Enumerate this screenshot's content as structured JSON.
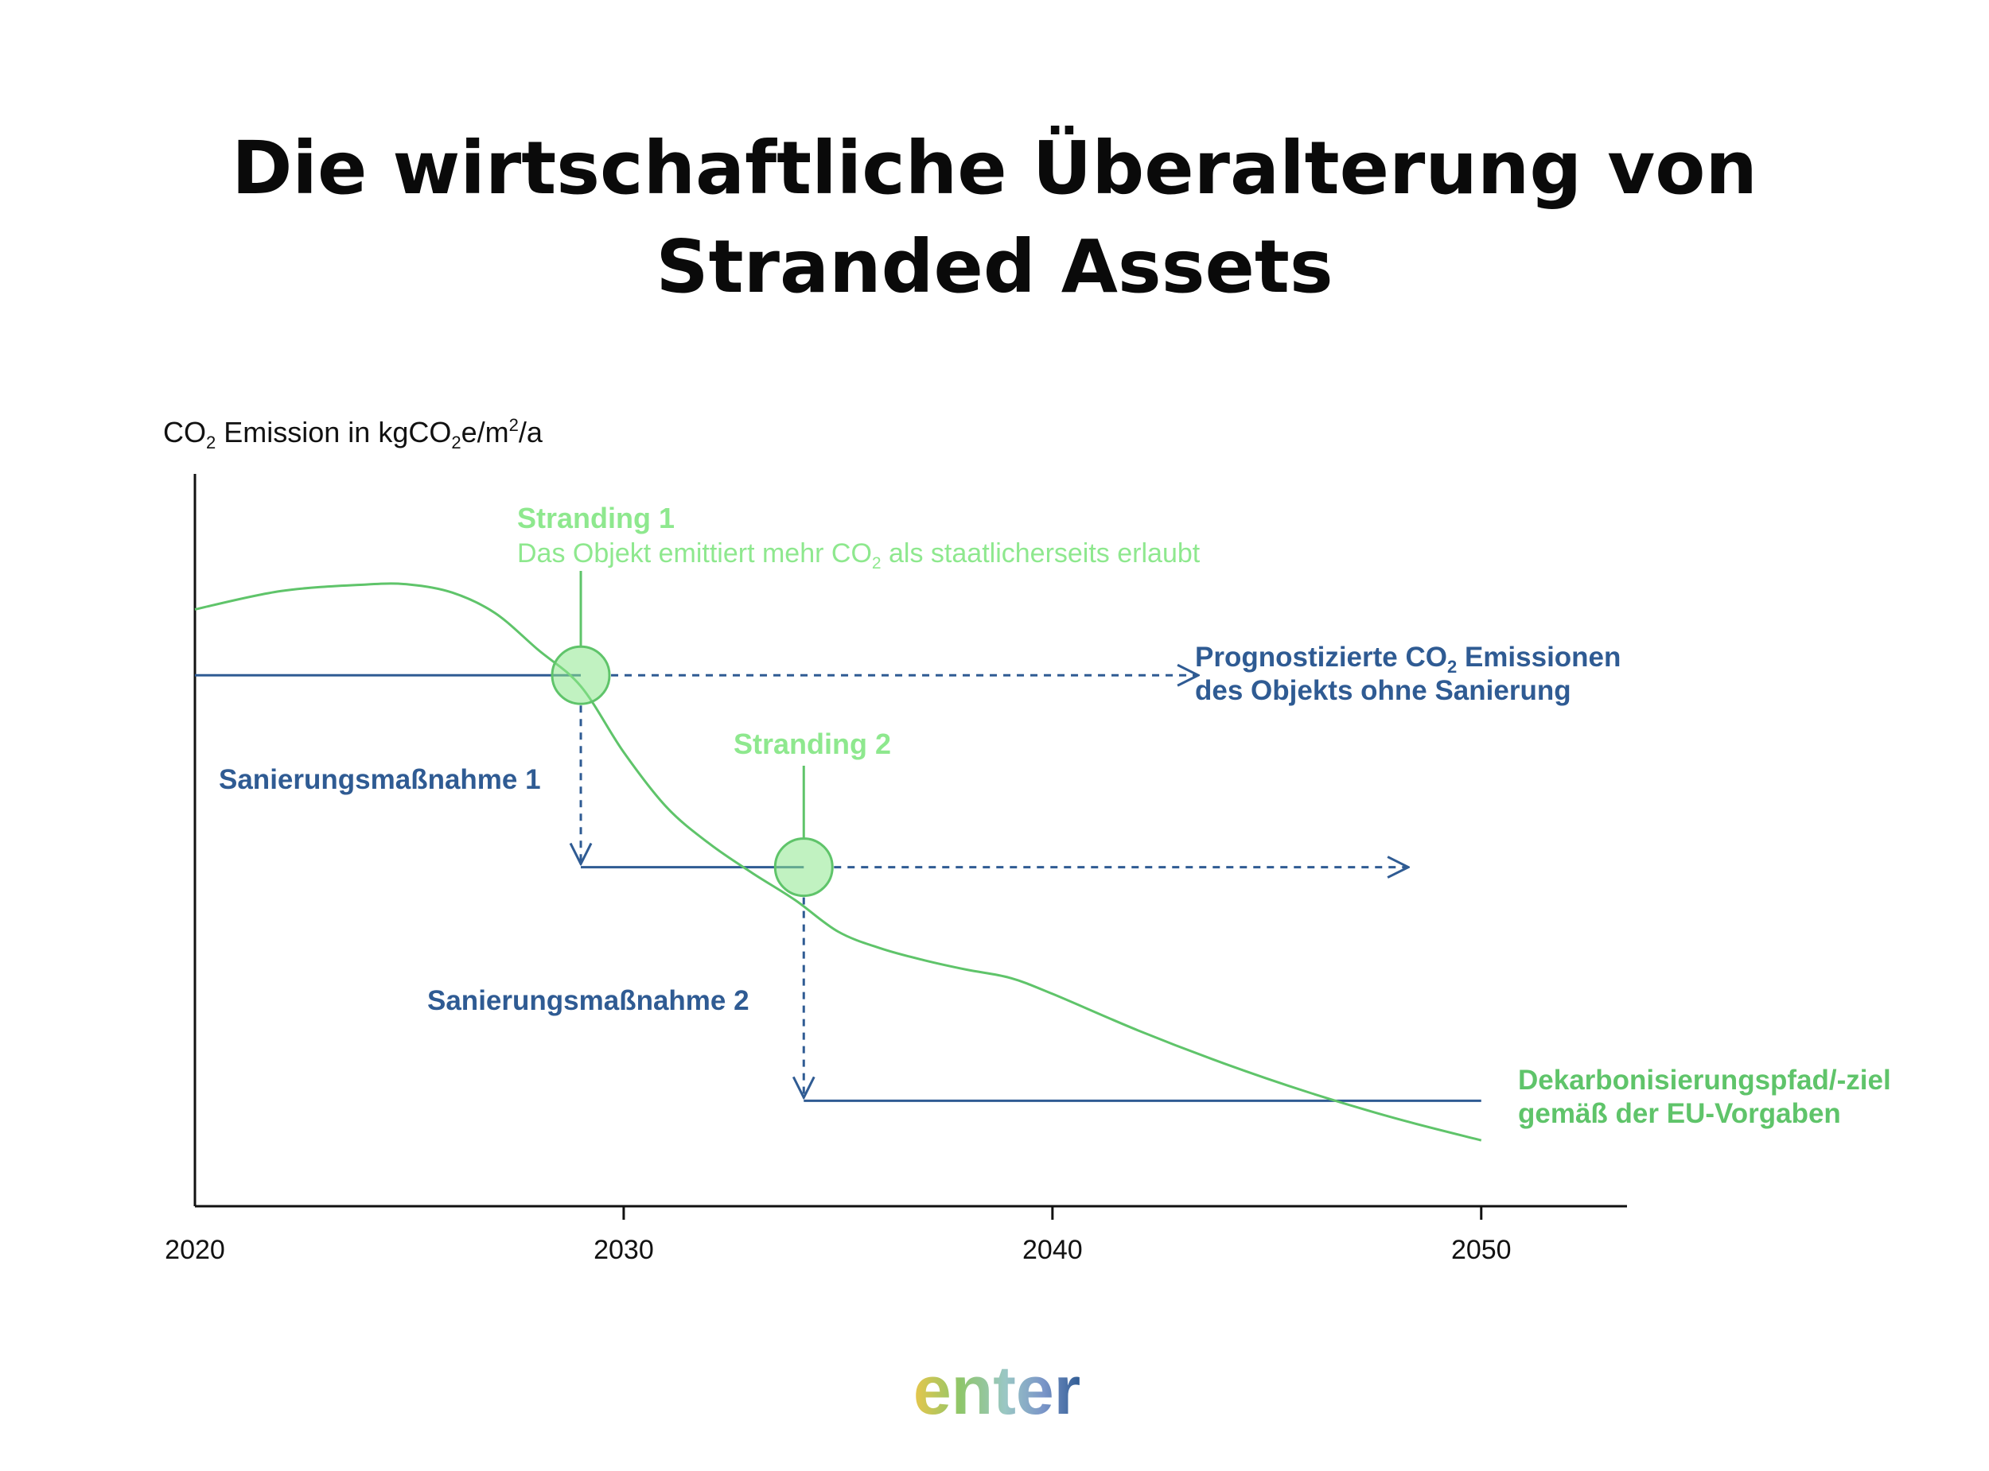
{
  "title": {
    "line1": "Die wirtschaftliche Überalterung von",
    "line2": "Stranded Assets"
  },
  "colors": {
    "green": "#5fc46a",
    "light_green": "#8ee88e",
    "blue": "#2f5b93",
    "axis": "#111111"
  },
  "logo": {
    "text": "enter"
  },
  "chart_data": {
    "type": "line",
    "ylabel": {
      "prefix": "CO",
      "sub": "2",
      "middle": " Emission in kgCO",
      "sub2": "2",
      "suffix": "e/m",
      "sup": "2",
      "end": "/a"
    },
    "x_ticks": [
      "2020",
      "2030",
      "2040",
      "2050"
    ],
    "xlim": [
      2020,
      2053.4
    ],
    "ylim": [
      0,
      100
    ],
    "series": [
      {
        "name": "Dekarbonisierungspfad/-ziel gemäß der EU-Vorgaben",
        "style": "solid",
        "x": [
          2020,
          2022,
          2024,
          2025,
          2026,
          2027,
          2028,
          2029,
          2030,
          2031,
          2032,
          2033,
          2034,
          2035,
          2036,
          2037,
          2038,
          2039,
          2040,
          2042,
          2044,
          2046,
          2048,
          2050
        ],
        "y": [
          81.5,
          84.0,
          84.9,
          84.9,
          83.8,
          81.0,
          76.0,
          71.0,
          62.0,
          54.5,
          49.5,
          45.5,
          41.8,
          37.5,
          35.2,
          33.6,
          32.3,
          31.2,
          29.0,
          24.0,
          19.5,
          15.5,
          12.0,
          9.0
        ]
      },
      {
        "name": "Prognostizierte CO2 Emissionen des Objekts ohne Sanierung",
        "style": "step",
        "x": [
          2020,
          2029,
          2029,
          2034.2,
          2034.2,
          2050
        ],
        "y": [
          72.5,
          72.5,
          46.3,
          46.3,
          14.4,
          14.4
        ]
      }
    ],
    "projections": [
      {
        "from": [
          2029,
          72.5
        ],
        "to": [
          2043.4,
          72.5
        ]
      },
      {
        "from": [
          2034.2,
          46.3
        ],
        "to": [
          2048.3,
          46.3
        ]
      }
    ],
    "stranding_points": [
      {
        "label": "Stranding 1",
        "x": 2029,
        "y": 72.5
      },
      {
        "label": "Stranding 2",
        "x": 2034.2,
        "y": 46.3
      }
    ],
    "annotations": {
      "stranding1_title": "Stranding 1",
      "stranding1_desc_a": "Das Objekt emittiert mehr CO",
      "stranding1_desc_sub": "2",
      "stranding1_desc_b": " als staatlicherseits erlaubt",
      "stranding2_title": "Stranding 2",
      "measure1": "Sanierungsmaßnahme 1",
      "measure2": "Sanierungsmaßnahme 2",
      "forecast_a": "Prognostizierte CO",
      "forecast_sub": "2",
      "forecast_b": " Emissionen",
      "forecast_line2": "des Objekts ohne Sanierung",
      "decarb_line1": "Dekarbonisierungspfad/-ziel",
      "decarb_line2": "gemäß der EU-Vorgaben"
    }
  }
}
